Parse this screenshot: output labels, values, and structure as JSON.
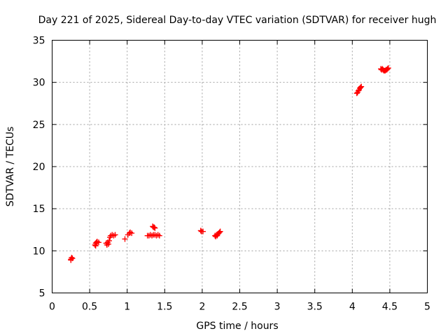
{
  "chart_data": {
    "type": "scatter",
    "title": "Day 221 of 2025, Sidereal Day-to-day VTEC variation (SDTVAR) for receiver hugh",
    "xlabel": "GPS time / hours",
    "ylabel": "SDTVAR / TECUs",
    "xlim": [
      0,
      5
    ],
    "ylim": [
      5,
      35
    ],
    "xticks": [
      "0",
      "0.5",
      "1",
      "1.5",
      "2",
      "2.5",
      "3",
      "3.5",
      "4",
      "4.5",
      "5"
    ],
    "yticks": [
      "5",
      "10",
      "15",
      "20",
      "25",
      "30",
      "35"
    ],
    "grid": true,
    "marker": "+",
    "color": "#ff0000",
    "series": [
      {
        "name": "SDTVAR",
        "points": [
          [
            0.25,
            9.0
          ],
          [
            0.26,
            9.2
          ],
          [
            0.27,
            9.1
          ],
          [
            0.25,
            8.9
          ],
          [
            0.57,
            10.7
          ],
          [
            0.58,
            10.9
          ],
          [
            0.59,
            11.0
          ],
          [
            0.6,
            11.1
          ],
          [
            0.62,
            11.0
          ],
          [
            0.58,
            10.6
          ],
          [
            0.72,
            10.9
          ],
          [
            0.73,
            10.7
          ],
          [
            0.74,
            11.0
          ],
          [
            0.75,
            10.8
          ],
          [
            0.76,
            11.2
          ],
          [
            0.77,
            11.6
          ],
          [
            0.78,
            11.8
          ],
          [
            0.8,
            11.9
          ],
          [
            0.82,
            11.8
          ],
          [
            0.84,
            11.9
          ],
          [
            0.97,
            11.4
          ],
          [
            1.01,
            11.9
          ],
          [
            1.03,
            12.1
          ],
          [
            1.04,
            12.2
          ],
          [
            1.06,
            12.1
          ],
          [
            1.27,
            11.8
          ],
          [
            1.29,
            11.8
          ],
          [
            1.31,
            11.9
          ],
          [
            1.33,
            11.8
          ],
          [
            1.35,
            11.9
          ],
          [
            1.37,
            11.9
          ],
          [
            1.39,
            11.8
          ],
          [
            1.41,
            11.9
          ],
          [
            1.43,
            11.8
          ],
          [
            1.34,
            12.9
          ],
          [
            1.35,
            12.8
          ],
          [
            1.36,
            12.8
          ],
          [
            1.37,
            12.7
          ],
          [
            1.98,
            12.4
          ],
          [
            1.99,
            12.3
          ],
          [
            2.01,
            12.3
          ],
          [
            2.17,
            11.8
          ],
          [
            2.18,
            11.7
          ],
          [
            2.19,
            11.9
          ],
          [
            2.2,
            11.8
          ],
          [
            2.21,
            12.0
          ],
          [
            2.22,
            12.1
          ],
          [
            2.23,
            12.2
          ],
          [
            2.24,
            12.3
          ],
          [
            4.06,
            28.7
          ],
          [
            4.07,
            28.8
          ],
          [
            4.08,
            29.0
          ],
          [
            4.09,
            29.1
          ],
          [
            4.1,
            29.3
          ],
          [
            4.11,
            29.4
          ],
          [
            4.12,
            29.5
          ],
          [
            4.38,
            31.6
          ],
          [
            4.39,
            31.5
          ],
          [
            4.4,
            31.6
          ],
          [
            4.41,
            31.5
          ],
          [
            4.42,
            31.4
          ],
          [
            4.43,
            31.4
          ],
          [
            4.44,
            31.4
          ],
          [
            4.45,
            31.5
          ],
          [
            4.46,
            31.5
          ],
          [
            4.47,
            31.6
          ],
          [
            4.48,
            31.7
          ]
        ]
      }
    ]
  }
}
